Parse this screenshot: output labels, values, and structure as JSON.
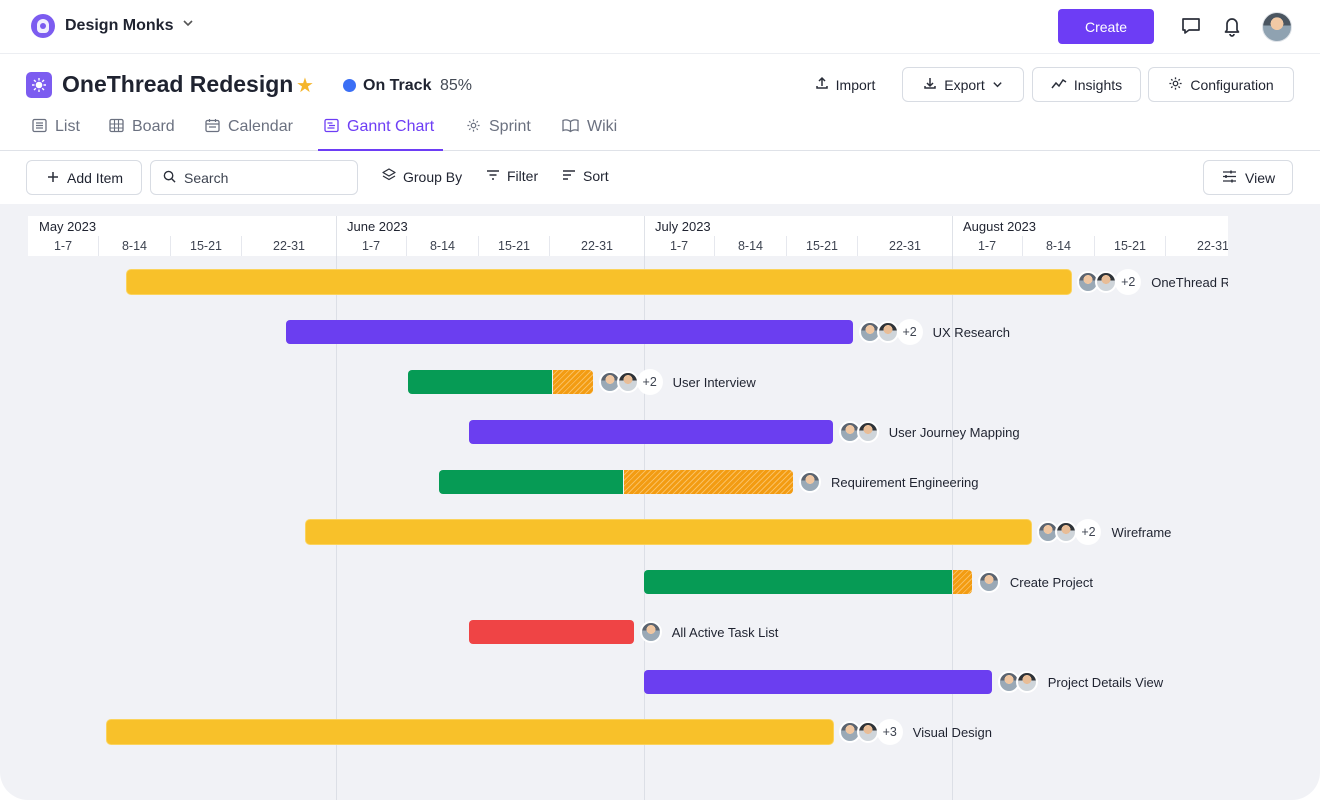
{
  "workspace": {
    "name": "Design Monks"
  },
  "topbar": {
    "create_label": "Create"
  },
  "project": {
    "title": "OneThread Redesign",
    "status": "On Track",
    "progress": "85%",
    "status_color": "#3b6ff5",
    "accent": "#6d3df5"
  },
  "header_actions": {
    "import": "Import",
    "export": "Export",
    "insights": "Insights",
    "configuration": "Configuration"
  },
  "tabs": [
    {
      "label": "List",
      "icon": "list-icon"
    },
    {
      "label": "Board",
      "icon": "board-icon"
    },
    {
      "label": "Calendar",
      "icon": "calendar-icon"
    },
    {
      "label": "Gannt Chart",
      "icon": "gantt-icon",
      "active": true
    },
    {
      "label": "Sprint",
      "icon": "sprint-icon"
    },
    {
      "label": "Wiki",
      "icon": "wiki-icon"
    }
  ],
  "toolbar": {
    "add_item": "Add Item",
    "search_placeholder": "Search",
    "group_by": "Group By",
    "filter": "Filter",
    "sort": "Sort",
    "view": "View"
  },
  "timeline": {
    "months": [
      "May 2023",
      "June 2023",
      "July 2023",
      "August 2023"
    ],
    "weeks": [
      "1-7",
      "8-14",
      "15-21",
      "22-31"
    ]
  },
  "chart_data": {
    "type": "gantt",
    "months": [
      "May 2023",
      "June 2023",
      "July 2023",
      "August 2023"
    ],
    "week_ticks": [
      "1-7",
      "8-14",
      "15-21",
      "22-31"
    ],
    "tasks": [
      {
        "name": "OneThread Redesign",
        "start": "2023-05-11",
        "end": "2023-08-13",
        "color": "#f8c12a",
        "extra_assignees": "+2",
        "avatars": 2
      },
      {
        "name": "UX Research",
        "start": "2023-05-27",
        "end": "2023-07-22",
        "color": "#6b3ef0",
        "extra_assignees": "+2",
        "avatars": 2
      },
      {
        "name": "User Interview",
        "start": "2023-06-08",
        "end": "2023-06-26",
        "color": "#069b55",
        "overdue_from": "2023-06-22",
        "extra_assignees": "+2",
        "avatars": 2
      },
      {
        "name": "User Journey Mapping",
        "start": "2023-06-14",
        "end": "2023-07-20",
        "color": "#6b3ef0",
        "avatars": 2
      },
      {
        "name": "Requirement Engineering",
        "start": "2023-06-11",
        "end": "2023-07-16",
        "color": "#069b55",
        "overdue_from": "2023-06-29",
        "avatars": 1
      },
      {
        "name": "Wireframe",
        "start": "2023-05-29",
        "end": "2023-08-09",
        "color": "#f8c12a",
        "extra_assignees": "+2",
        "avatars": 2
      },
      {
        "name": "Create Project",
        "start": "2023-07-01",
        "end": "2023-08-03",
        "color": "#069b55",
        "overdue_from": "2023-08-01",
        "avatars": 1
      },
      {
        "name": "All Active Task List",
        "start": "2023-06-14",
        "end": "2023-06-30",
        "color": "#ef4445",
        "avatars": 1
      },
      {
        "name": "Project Details View",
        "start": "2023-07-01",
        "end": "2023-08-05",
        "color": "#6b3ef0",
        "avatars": 2
      },
      {
        "name": "Visual Design",
        "start": "2023-05-09",
        "end": "2023-07-20",
        "color": "#f8c12a",
        "extra_assignees": "+3",
        "avatars": 2
      }
    ]
  }
}
